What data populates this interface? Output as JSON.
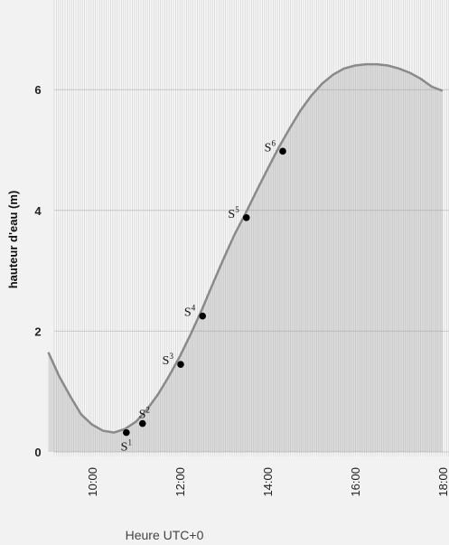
{
  "chart_data": {
    "type": "area",
    "title": "",
    "xlabel": "Heure UTC+0",
    "ylabel": "hauteur d'eau (m)",
    "x_ticks": [
      "10:00",
      "12:00",
      "14:00",
      "16:00",
      "18:00"
    ],
    "y_ticks": [
      "0",
      "2",
      "4",
      "6"
    ],
    "xlim_hours": [
      9.0,
      18.0
    ],
    "ylim": [
      0,
      7.0
    ],
    "grid": true,
    "curve": {
      "x_hours": [
        9.0,
        9.25,
        9.5,
        9.75,
        10.0,
        10.25,
        10.5,
        10.75,
        11.0,
        11.25,
        11.5,
        11.75,
        12.0,
        12.25,
        12.5,
        12.75,
        13.0,
        13.25,
        13.5,
        13.75,
        14.0,
        14.25,
        14.5,
        14.75,
        15.0,
        15.25,
        15.5,
        15.75,
        16.0,
        16.25,
        16.5,
        16.75,
        17.0,
        17.25,
        17.5,
        17.75,
        18.0
      ],
      "y": [
        1.65,
        1.25,
        0.92,
        0.62,
        0.45,
        0.35,
        0.32,
        0.38,
        0.5,
        0.7,
        0.95,
        1.25,
        1.58,
        1.95,
        2.35,
        2.78,
        3.2,
        3.6,
        3.95,
        4.32,
        4.68,
        5.03,
        5.35,
        5.65,
        5.9,
        6.1,
        6.25,
        6.35,
        6.4,
        6.42,
        6.42,
        6.4,
        6.35,
        6.28,
        6.18,
        6.05,
        5.98
      ]
    },
    "points": [
      {
        "label": "S",
        "sup": "1",
        "x": 10.78,
        "y": 0.32
      },
      {
        "label": "S",
        "sup": "2",
        "x": 11.15,
        "y": 0.47
      },
      {
        "label": "S",
        "sup": "3",
        "x": 12.02,
        "y": 1.45
      },
      {
        "label": "S",
        "sup": "4",
        "x": 12.52,
        "y": 2.25
      },
      {
        "label": "S",
        "sup": "5",
        "x": 13.52,
        "y": 3.88
      },
      {
        "label": "S",
        "sup": "6",
        "x": 14.35,
        "y": 4.98
      }
    ]
  }
}
